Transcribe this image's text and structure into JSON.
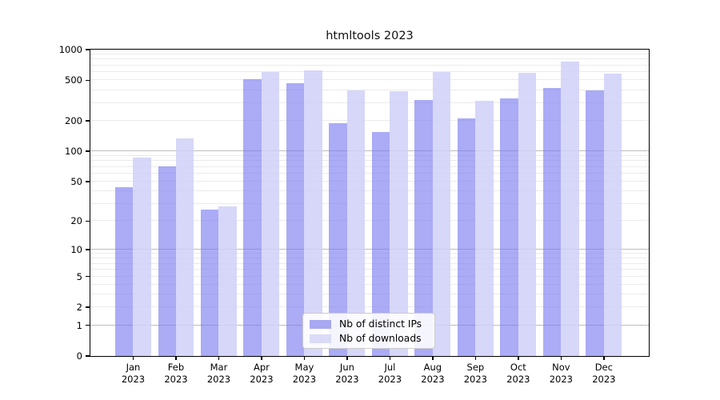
{
  "title": "htmltools 2023",
  "chart_data": {
    "type": "bar",
    "title": "htmltools 2023",
    "categories": [
      "Jan",
      "Feb",
      "Mar",
      "Apr",
      "May",
      "Jun",
      "Jul",
      "Aug",
      "Sep",
      "Oct",
      "Nov",
      "Dec"
    ],
    "x_year_label": "2023",
    "series": [
      {
        "name": "Nb of distinct IPs",
        "color": "#a7a7f2",
        "values": [
          44,
          71,
          26,
          512,
          470,
          188,
          155,
          318,
          210,
          335,
          420,
          400
        ]
      },
      {
        "name": "Nb of downloads",
        "color": "#dbdbf7",
        "values": [
          87,
          133,
          28,
          605,
          620,
          395,
          394,
          600,
          313,
          590,
          760,
          577
        ]
      }
    ],
    "y_scale": "log10(value+1)",
    "y_ticks": [
      0,
      1,
      2,
      5,
      10,
      20,
      50,
      100,
      200,
      500,
      1000
    ],
    "ylim": [
      0,
      1000
    ],
    "grid": true,
    "legend_position": "lower center",
    "axis_color": "#000000",
    "grid_minor_color": "#ebebeb",
    "grid_major_color": "#bdbdbd"
  }
}
